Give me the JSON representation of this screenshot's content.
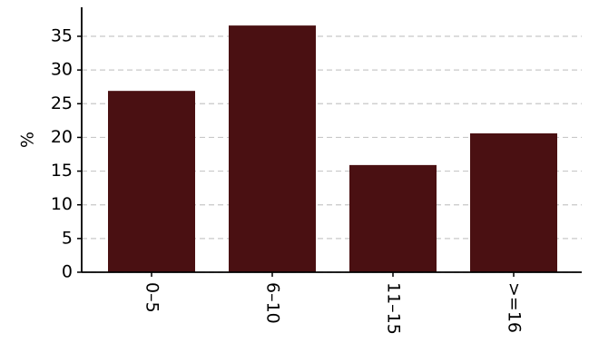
{
  "chart_data": {
    "type": "bar",
    "title": "",
    "xlabel": "",
    "ylabel": "%",
    "categories": [
      "0–5",
      "6–10",
      "11–15",
      ">=16"
    ],
    "values": [
      26.9,
      36.6,
      15.9,
      20.6
    ],
    "ylim": [
      0,
      38.5
    ],
    "yticks": [
      0,
      5,
      10,
      15,
      20,
      25,
      30,
      35
    ],
    "grid": true,
    "legend": "none",
    "colors": {
      "bar": "#4a1012",
      "grid": "#c8c8c8",
      "axis": "#000000"
    }
  }
}
